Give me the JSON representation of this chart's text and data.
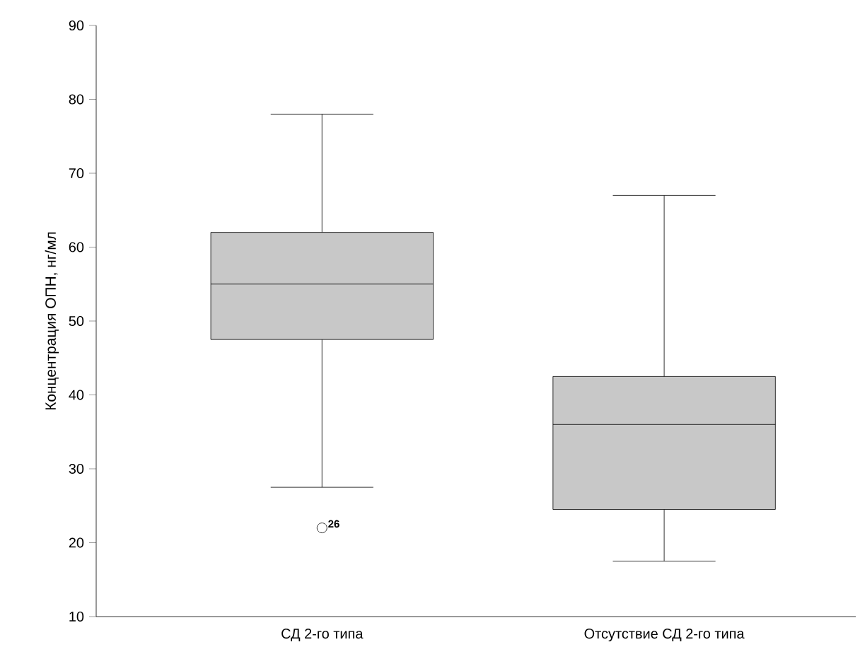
{
  "chart_data": {
    "type": "box",
    "ylabel": "Концентрация ОПН, нг/мл",
    "categories": [
      "СД 2-го типа",
      "Отсутствие СД 2-го типа"
    ],
    "color": "#c8c8c8",
    "boxes": [
      {
        "low": 27.5,
        "q1": 47.5,
        "median": 55,
        "q3": 62,
        "high": 78,
        "outliers": [
          22
        ]
      },
      {
        "low": 17.5,
        "q1": 24.5,
        "median": 36,
        "q3": 42.5,
        "high": 67
      }
    ],
    "ylim": [
      10,
      90
    ],
    "yticks": [
      10,
      20,
      30,
      40,
      50,
      60,
      70,
      80,
      90
    ],
    "annotations": [
      "26"
    ]
  }
}
